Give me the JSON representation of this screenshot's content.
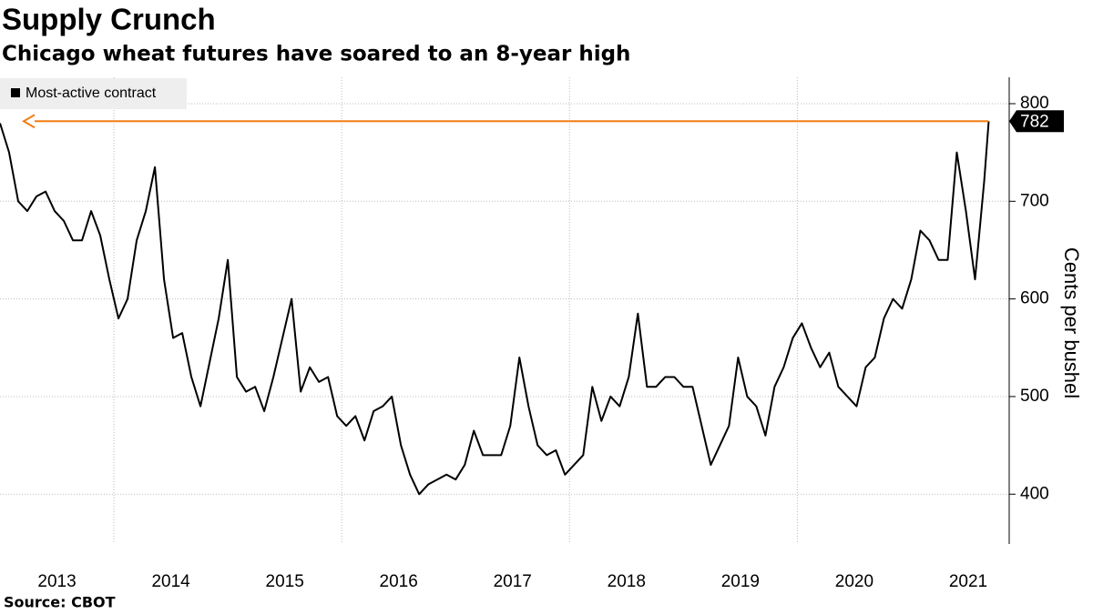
{
  "chart_data": {
    "type": "line",
    "title": "Supply Crunch",
    "subtitle": "Chicago wheat futures have soared to an 8-year high",
    "y_axis_label": "Cents per bushel",
    "source": "Source: CBOT",
    "x": [
      2013,
      2013.08,
      2013.16,
      2013.24,
      2013.32,
      2013.4,
      2013.48,
      2013.56,
      2013.64,
      2013.72,
      2013.8,
      2013.88,
      2013.96,
      2014.04,
      2014.12,
      2014.2,
      2014.28,
      2014.36,
      2014.44,
      2014.52,
      2014.6,
      2014.68,
      2014.76,
      2014.84,
      2014.92,
      2015,
      2015.08,
      2015.16,
      2015.24,
      2015.32,
      2015.4,
      2015.48,
      2015.56,
      2015.64,
      2015.72,
      2015.8,
      2015.88,
      2015.96,
      2016.04,
      2016.12,
      2016.2,
      2016.28,
      2016.36,
      2016.44,
      2016.52,
      2016.6,
      2016.68,
      2016.76,
      2016.84,
      2016.92,
      2017,
      2017.08,
      2017.16,
      2017.24,
      2017.32,
      2017.4,
      2017.48,
      2017.56,
      2017.64,
      2017.72,
      2017.8,
      2017.88,
      2017.96,
      2018.04,
      2018.12,
      2018.2,
      2018.28,
      2018.36,
      2018.44,
      2018.52,
      2018.6,
      2018.68,
      2018.76,
      2018.84,
      2018.92,
      2019,
      2019.08,
      2019.16,
      2019.24,
      2019.32,
      2019.4,
      2019.48,
      2019.56,
      2019.64,
      2019.72,
      2019.8,
      2019.88,
      2019.96,
      2020.04,
      2020.12,
      2020.2,
      2020.28,
      2020.36,
      2020.44,
      2020.52,
      2020.6,
      2020.68,
      2020.76,
      2020.84,
      2020.92,
      2021,
      2021.08,
      2021.16,
      2021.24,
      2021.32,
      2021.4,
      2021.48,
      2021.56,
      2021.64,
      2021.68
    ],
    "series": [
      {
        "name": "Most-active contract",
        "color": "#000000",
        "values": [
          780,
          750,
          700,
          690,
          705,
          710,
          690,
          680,
          660,
          660,
          690,
          665,
          620,
          580,
          600,
          660,
          690,
          735,
          620,
          560,
          565,
          520,
          490,
          535,
          580,
          640,
          520,
          505,
          510,
          485,
          520,
          560,
          600,
          505,
          530,
          515,
          520,
          480,
          470,
          480,
          455,
          485,
          490,
          500,
          450,
          420,
          400,
          410,
          415,
          420,
          415,
          430,
          465,
          440,
          440,
          440,
          470,
          540,
          490,
          450,
          440,
          445,
          420,
          430,
          440,
          510,
          475,
          500,
          490,
          520,
          585,
          510,
          510,
          520,
          520,
          510,
          510,
          470,
          430,
          450,
          470,
          540,
          500,
          490,
          460,
          510,
          530,
          560,
          575,
          550,
          530,
          545,
          510,
          500,
          490,
          530,
          540,
          580,
          600,
          590,
          620,
          670,
          660,
          640,
          640,
          750,
          690,
          620,
          720,
          782
        ]
      }
    ],
    "arrow_color": "#f07d14",
    "xlim": [
      2013,
      2021.86
    ],
    "xticks": [
      2013,
      2014,
      2015,
      2016,
      2017,
      2018,
      2019,
      2020,
      2021
    ],
    "ylim": [
      349,
      827
    ],
    "yticks": [
      400,
      500,
      600,
      700,
      800
    ],
    "grid": true,
    "legend": "upper left"
  }
}
